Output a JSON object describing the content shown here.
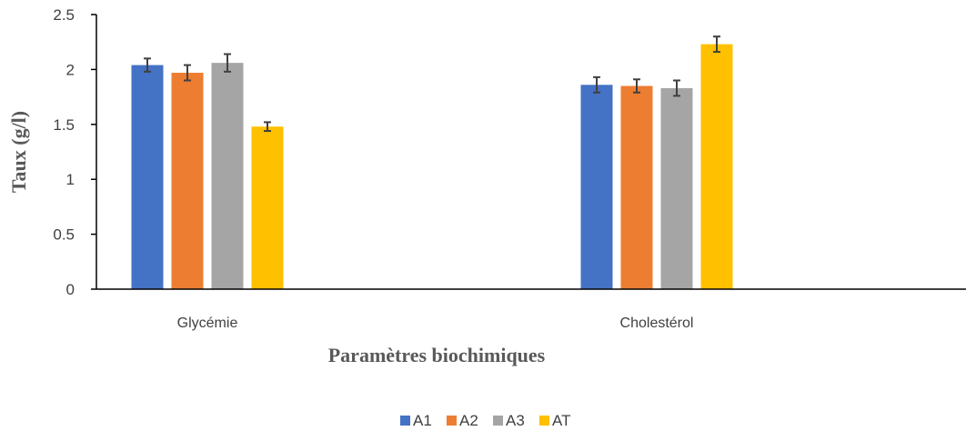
{
  "chart_data": {
    "type": "bar",
    "title": "",
    "xlabel": "Paramètres biochimiques",
    "ylabel": "Taux (g/l)",
    "ylim": [
      0,
      2.5
    ],
    "yticks": [
      "0",
      "0.5",
      "1",
      "1.5",
      "2",
      "2.5"
    ],
    "categories": [
      "Glycémie",
      "Cholestérol"
    ],
    "series": [
      {
        "name": "A1",
        "color": "#4472C4",
        "values": [
          2.04,
          1.86
        ],
        "errors": [
          0.06,
          0.07
        ]
      },
      {
        "name": "A2",
        "color": "#ED7D31",
        "values": [
          1.97,
          1.85
        ],
        "errors": [
          0.07,
          0.06
        ]
      },
      {
        "name": "A3",
        "color": "#A5A5A5",
        "values": [
          2.06,
          1.83
        ],
        "errors": [
          0.08,
          0.07
        ]
      },
      {
        "name": "AT",
        "color": "#FFC000",
        "values": [
          1.48,
          2.23
        ],
        "errors": [
          0.04,
          0.07
        ]
      }
    ],
    "grid": false,
    "legend": "bottom"
  }
}
